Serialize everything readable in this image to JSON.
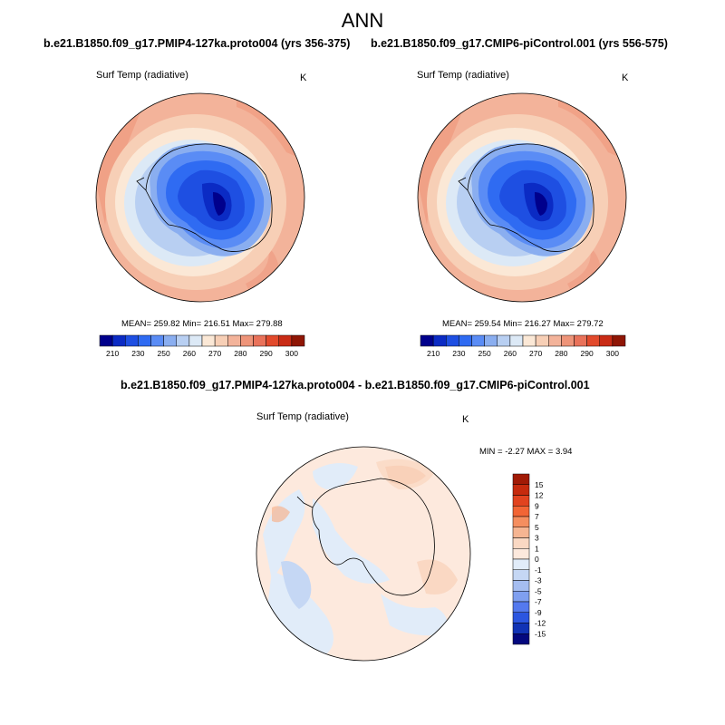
{
  "figure": {
    "title": "ANN"
  },
  "panels": [
    {
      "case": "b.e21.B1850.f09_g17.PMIP4-127ka.proto004 (yrs 356-375)",
      "variable": "Surf Temp (radiative)",
      "units": "K",
      "stats": {
        "mean": "259.82",
        "min": "216.51",
        "max": "279.88"
      },
      "stats_text": "MEAN= 259.82  Min= 216.51  Max= 279.88"
    },
    {
      "case": "b.e21.B1850.f09_g17.CMIP6-piControl.001 (yrs 556-575)",
      "variable": "Surf Temp (radiative)",
      "units": "K",
      "stats": {
        "mean": "259.54",
        "min": "216.27",
        "max": "279.72"
      },
      "stats_text": "MEAN= 259.54  Min= 216.27  Max= 279.72"
    }
  ],
  "difference": {
    "case": "b.e21.B1850.f09_g17.PMIP4-127ka.proto004 - b.e21.B1850.f09_g17.CMIP6-piControl.001",
    "variable": "Surf Temp (radiative)",
    "units": "K",
    "stats": {
      "min": "-2.27",
      "max": "3.94"
    },
    "stats_text": "MIN =  -2.27 MAX =   3.94"
  },
  "colorbar_abs": {
    "colors": [
      "#00008c",
      "#0b2bc4",
      "#1e4fe2",
      "#2f6bf2",
      "#5a8cf5",
      "#8aaef0",
      "#b8cff2",
      "#dce9f6",
      "#fbe8d6",
      "#f7cfb6",
      "#f3b39a",
      "#ee9479",
      "#e9725a",
      "#e24a2c",
      "#c92b15",
      "#8f1605"
    ],
    "ticks": [
      "210",
      "230",
      "250",
      "260",
      "270",
      "280",
      "290",
      "300"
    ],
    "tick_boundaries": [
      1,
      3,
      5,
      7,
      9,
      11,
      13,
      15
    ]
  },
  "colorbar_diff": {
    "colors_top_to_bottom": [
      "#a11a05",
      "#c62a0d",
      "#e1431f",
      "#f26535",
      "#f58e5f",
      "#f6b592",
      "#fad8c3",
      "#fde9dd",
      "#e1ecf9",
      "#c5d7f4",
      "#a5bdf0",
      "#7f9ff0",
      "#5479ee",
      "#2c56e0",
      "#1133b5",
      "#04087e"
    ],
    "ticks_top_to_bottom": [
      "15",
      "12",
      "9",
      "7",
      "5",
      "3",
      "1",
      "0",
      "-1",
      "-3",
      "-5",
      "-7",
      "-9",
      "-12",
      "-15"
    ]
  },
  "colors": {
    "map_outer": "#f3b39a",
    "map_mid": "#f7cfb6",
    "map_pale": "#fbe8d6",
    "map_coast": "#dce9f6",
    "map_ice1": "#8aaef0",
    "map_ice2": "#5a8cf5",
    "map_ice3": "#1e4fe2",
    "map_ice4": "#0b2bc4",
    "map_ice5": "#00008c",
    "diff_base": "#fde9dd",
    "diff_cool": "#e1ecf9",
    "diff_cool2": "#c5d7f4",
    "diff_warm": "#fad8c3",
    "diff_warm2": "#f6b592"
  }
}
